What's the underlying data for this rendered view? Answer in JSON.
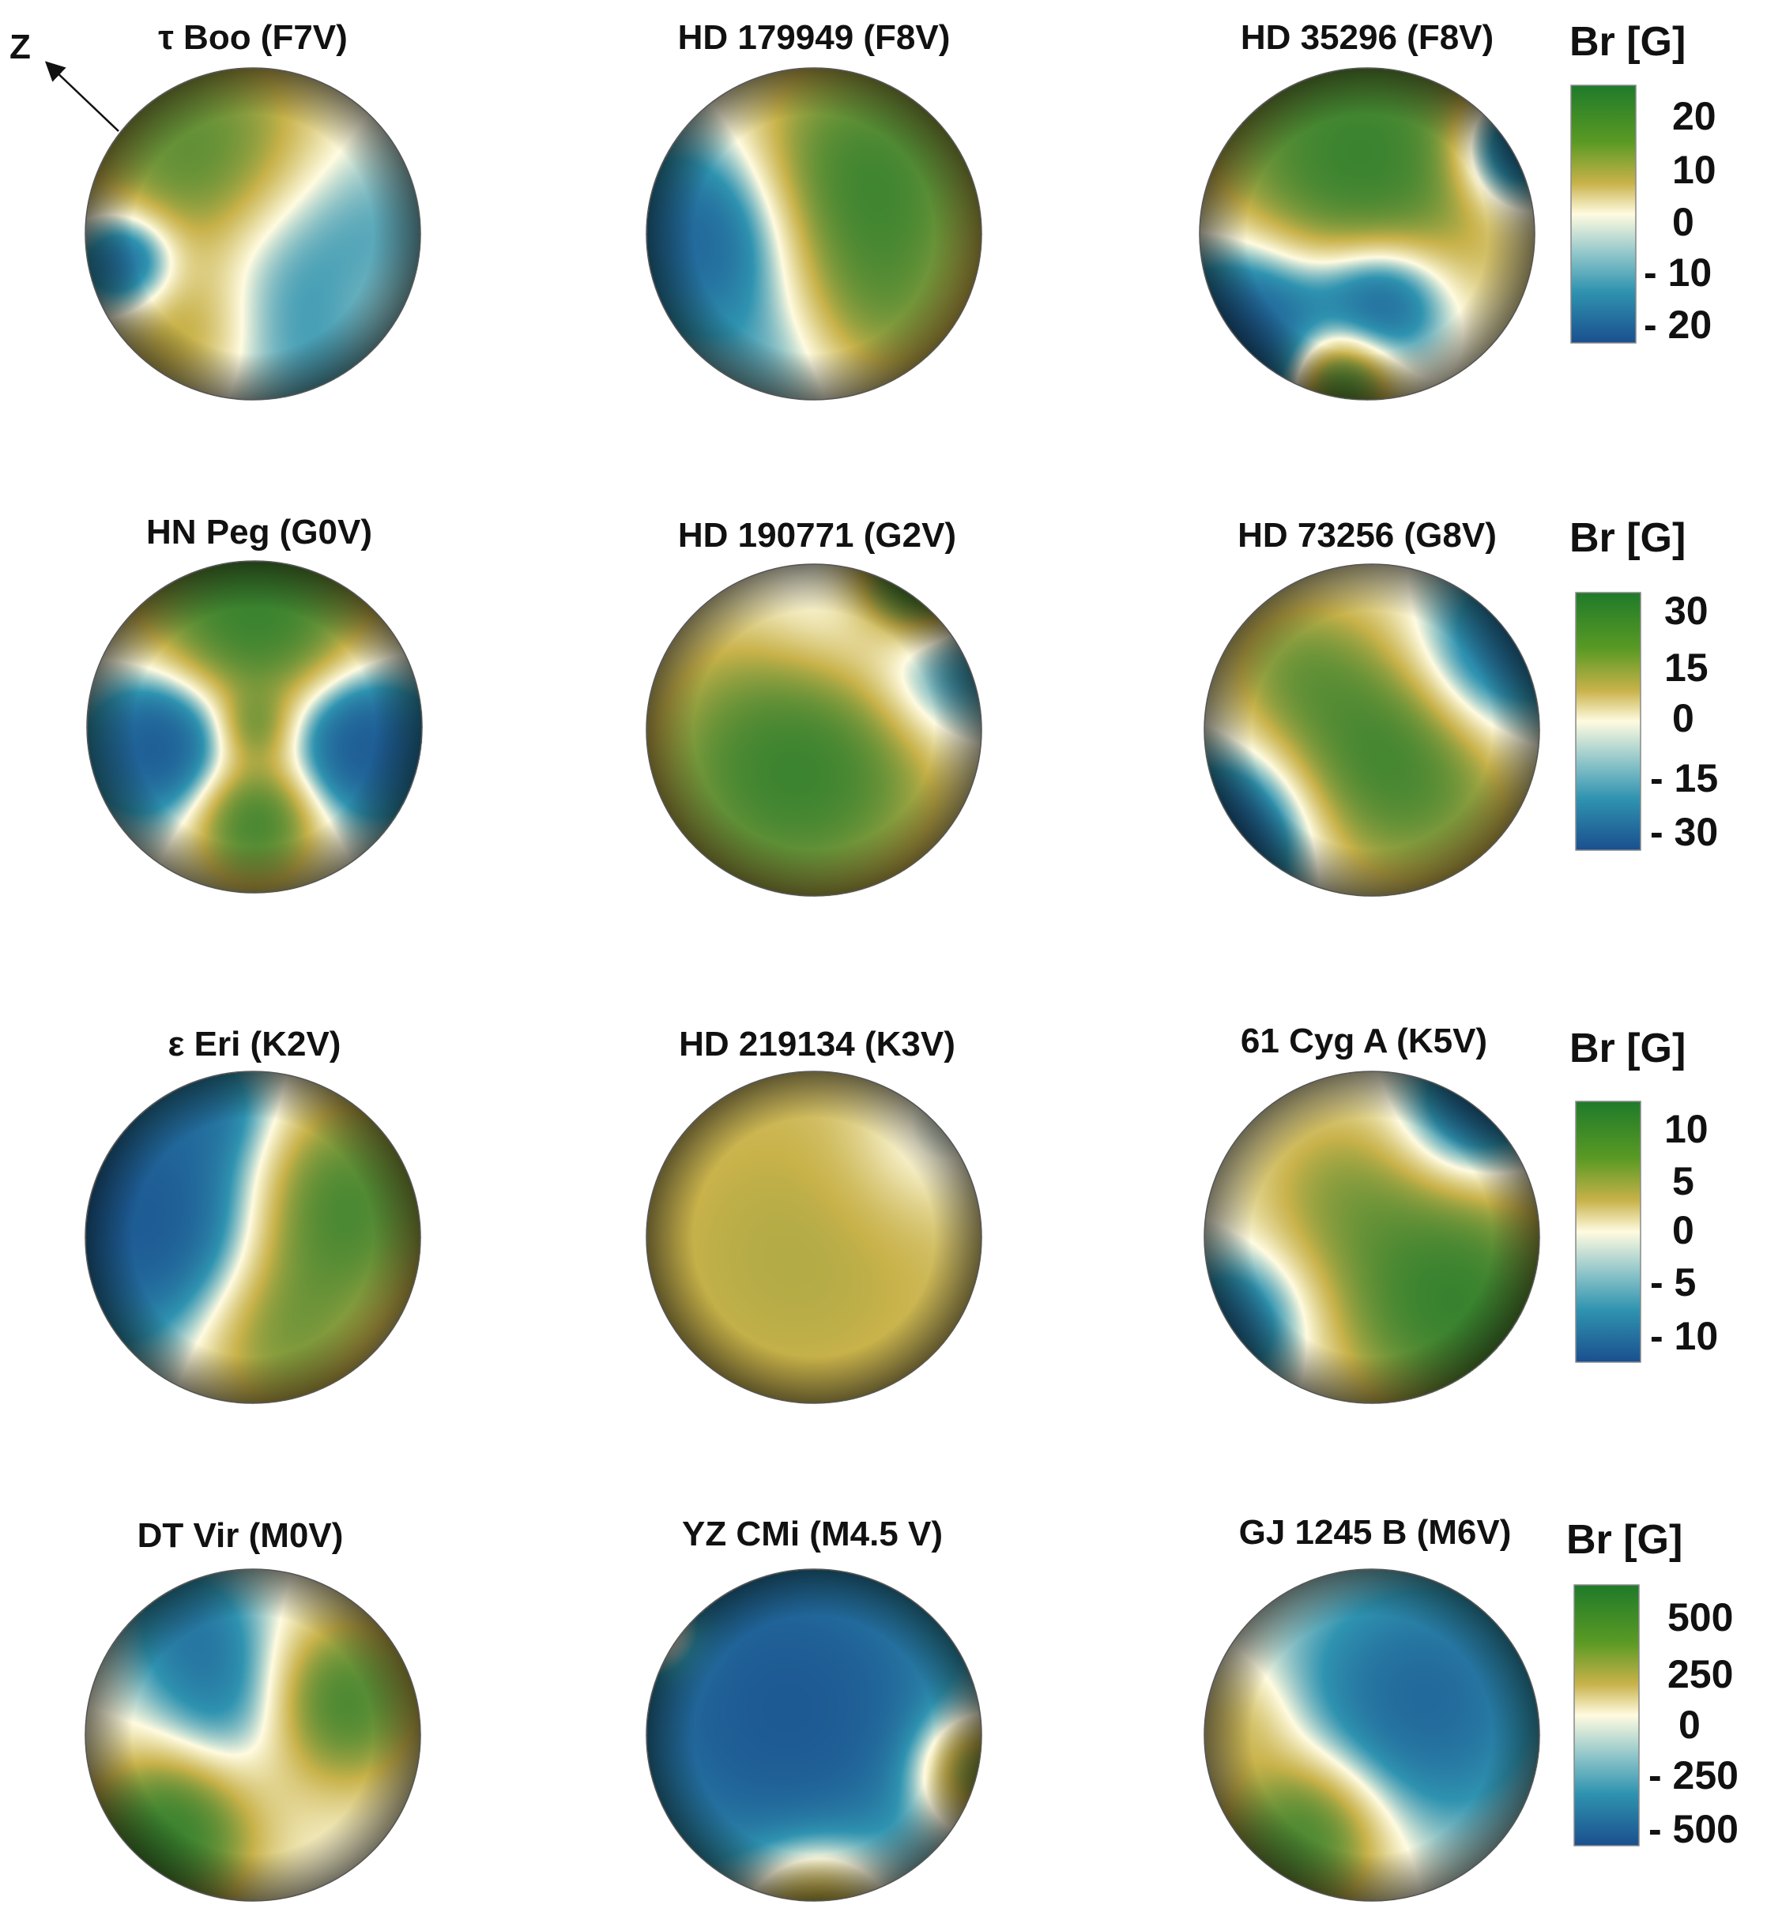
{
  "colors": {
    "scale": [
      "#1a4f8e",
      "#2f93b0",
      "#fffbe0",
      "#c8b24a",
      "#1f7a2a"
    ]
  },
  "axis": {
    "label": "Z"
  },
  "colorbars": [
    {
      "title": "Br [G]",
      "ticks": [
        "20",
        "10",
        "0",
        "- 10",
        "- 20"
      ]
    },
    {
      "title": "Br [G]",
      "ticks": [
        "30",
        "15",
        "0",
        "- 15",
        "- 30"
      ]
    },
    {
      "title": "Br [G]",
      "ticks": [
        "10",
        "5",
        "0",
        "- 5",
        "- 10"
      ]
    },
    {
      "title": "Br [G]",
      "ticks": [
        "500",
        "250",
        "0",
        "- 250",
        "- 500"
      ]
    }
  ],
  "stars": [
    {
      "title": "τ Boo (F7V)",
      "map": [
        [
          0.38,
          0.32,
          1.0,
          0.55
        ],
        [
          0.62,
          0.6,
          -0.85,
          0.6
        ],
        [
          0.12,
          0.58,
          -0.9,
          0.22
        ],
        [
          0.3,
          0.8,
          0.55,
          0.35
        ],
        [
          0.8,
          0.7,
          0.3,
          0.35
        ]
      ]
    },
    {
      "title": "HD 179949 (F8V)",
      "map": [
        [
          0.62,
          0.36,
          1.0,
          0.55
        ],
        [
          0.2,
          0.5,
          -0.9,
          0.45
        ],
        [
          0.7,
          0.75,
          0.3,
          0.35
        ],
        [
          0.4,
          0.9,
          -0.2,
          0.3
        ]
      ]
    },
    {
      "title": "HD 35296 (F8V)",
      "map": [
        [
          0.48,
          0.28,
          1.0,
          0.65
        ],
        [
          0.15,
          0.78,
          -1.0,
          0.4
        ],
        [
          0.55,
          0.7,
          -0.9,
          0.28
        ],
        [
          0.42,
          0.93,
          1.0,
          0.22
        ],
        [
          0.92,
          0.25,
          -0.9,
          0.25
        ]
      ]
    },
    {
      "title": "HN Peg (G0V)",
      "map": [
        [
          0.5,
          0.15,
          1.0,
          0.5
        ],
        [
          0.22,
          0.55,
          -1.0,
          0.32
        ],
        [
          0.82,
          0.55,
          -1.0,
          0.32
        ],
        [
          0.5,
          0.78,
          0.9,
          0.28
        ],
        [
          0.5,
          0.5,
          0.4,
          0.15
        ]
      ]
    },
    {
      "title": "HD 190771 (G2V)",
      "map": [
        [
          0.45,
          0.6,
          1.0,
          0.6
        ],
        [
          0.55,
          0.2,
          -0.3,
          0.4
        ],
        [
          0.9,
          0.35,
          -0.5,
          0.3
        ],
        [
          0.8,
          0.05,
          0.9,
          0.25
        ]
      ]
    },
    {
      "title": "HD 73256 (G8V)",
      "map": [
        [
          0.58,
          0.55,
          1.0,
          0.55
        ],
        [
          0.85,
          0.3,
          -0.9,
          0.4
        ],
        [
          0.1,
          0.8,
          -0.9,
          0.35
        ],
        [
          0.25,
          0.3,
          0.3,
          0.3
        ]
      ]
    },
    {
      "title": "ε Eri (K2V)",
      "map": [
        [
          0.2,
          0.45,
          -1.0,
          0.55
        ],
        [
          0.75,
          0.4,
          0.9,
          0.45
        ],
        [
          0.55,
          0.8,
          0.6,
          0.4
        ],
        [
          0.4,
          0.1,
          -0.3,
          0.25
        ]
      ]
    },
    {
      "title": "HD 219134 (K3V)",
      "map": [
        [
          0.45,
          0.55,
          0.4,
          1.2
        ],
        [
          0.85,
          0.2,
          -0.3,
          0.35
        ]
      ]
    },
    {
      "title": "61 Cyg A (K5V)",
      "map": [
        [
          0.75,
          0.7,
          1.0,
          0.5
        ],
        [
          0.4,
          0.35,
          0.4,
          0.4
        ],
        [
          0.1,
          0.75,
          -0.6,
          0.3
        ],
        [
          0.8,
          0.12,
          -0.7,
          0.3
        ]
      ]
    },
    {
      "title": "DT Vir (M0V)",
      "map": [
        [
          0.25,
          0.8,
          1.0,
          0.35
        ],
        [
          0.75,
          0.4,
          0.9,
          0.35
        ],
        [
          0.45,
          0.4,
          -0.5,
          0.35
        ],
        [
          0.3,
          0.15,
          -0.4,
          0.3
        ]
      ]
    },
    {
      "title": "YZ CMi (M4.5 V)",
      "map": [
        [
          0.42,
          0.42,
          -1.0,
          0.75
        ],
        [
          0.95,
          0.6,
          0.8,
          0.25
        ],
        [
          0.5,
          1.0,
          0.7,
          0.3
        ],
        [
          0.05,
          0.2,
          0.6,
          0.18
        ]
      ]
    },
    {
      "title": "GJ 1245 B (M6V)",
      "map": [
        [
          0.65,
          0.4,
          -0.7,
          0.55
        ],
        [
          0.3,
          0.8,
          0.9,
          0.35
        ],
        [
          0.1,
          0.45,
          0.3,
          0.25
        ]
      ]
    }
  ]
}
